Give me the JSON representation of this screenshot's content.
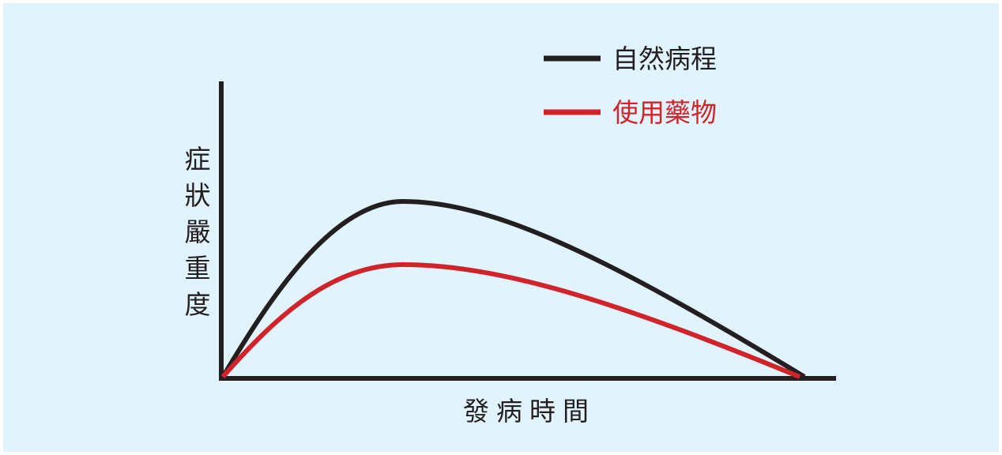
{
  "legend": {
    "items": [
      {
        "label": "自然病程",
        "color": "#231f20"
      },
      {
        "label": "使用藥物",
        "color": "#d1232a"
      }
    ]
  },
  "axes": {
    "y_label": "症狀嚴重度",
    "x_label": "發病時間"
  }
}
